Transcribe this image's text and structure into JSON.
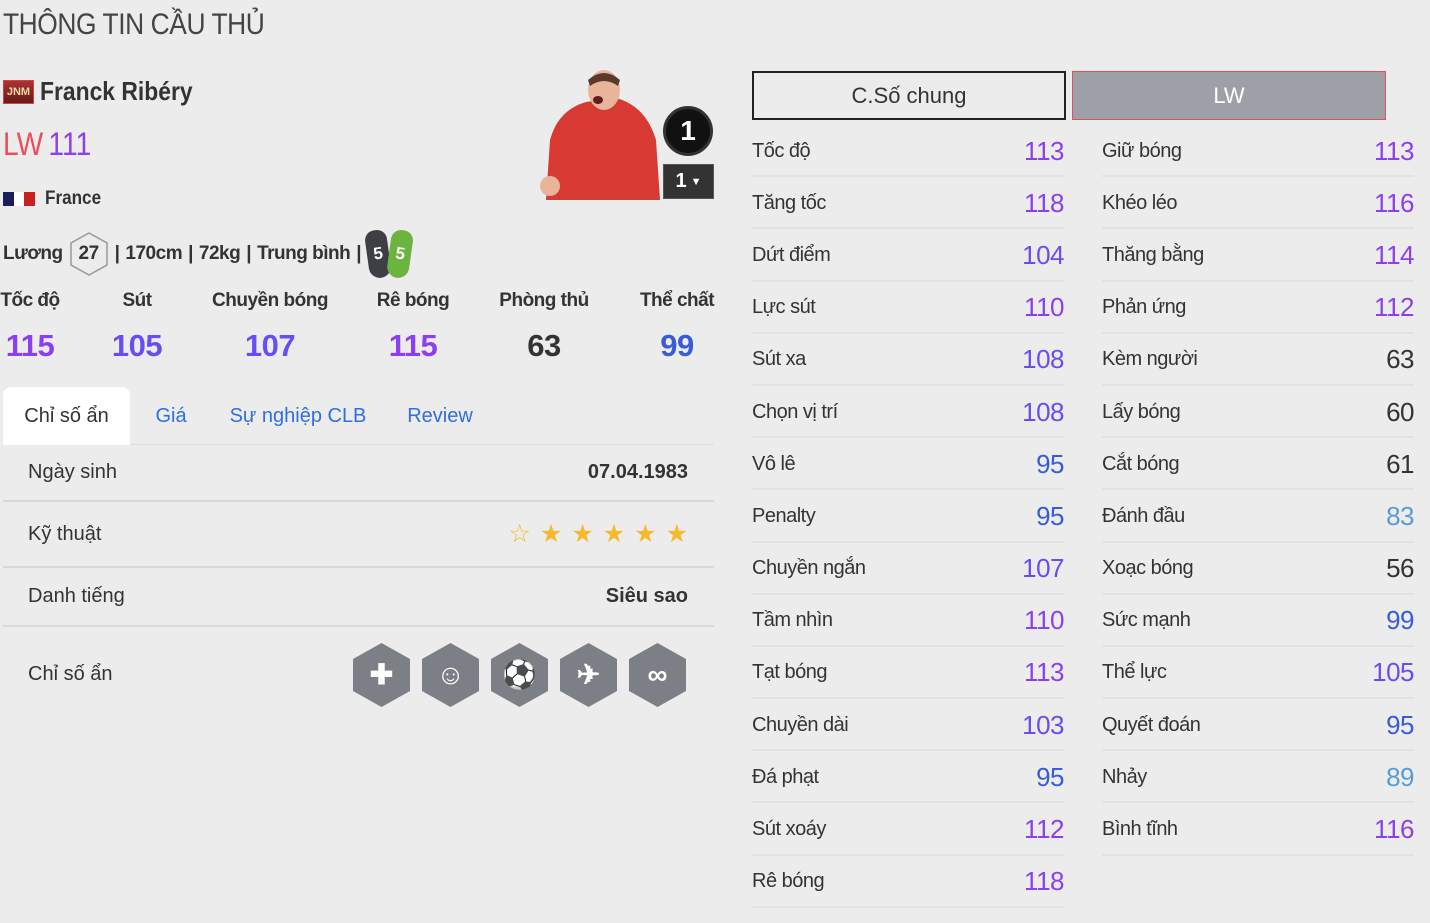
{
  "page_title": "THÔNG TIN CẦU THỦ",
  "player": {
    "season_badge": "JNM",
    "name": "Franck Ribéry",
    "position": "LW",
    "overall": "111",
    "nation": "France",
    "flag_colors": [
      "#1a1f5c",
      "#ffffff",
      "#c8201e"
    ],
    "wage_label": "Lương",
    "wage": "27",
    "height": "170cm",
    "weight": "72kg",
    "body_type": "Trung bình",
    "weak_foot": "5",
    "strong_foot": "5",
    "chemistry": "1",
    "level": "1"
  },
  "summary": [
    {
      "label": "Tốc độ",
      "value": "115"
    },
    {
      "label": "Sút",
      "value": "105"
    },
    {
      "label": "Chuyền bóng",
      "value": "107"
    },
    {
      "label": "Rê bóng",
      "value": "115"
    },
    {
      "label": "Phòng thủ",
      "value": "63"
    },
    {
      "label": "Thể chất",
      "value": "99"
    }
  ],
  "tabs": [
    {
      "label": "Chỉ số ẩn",
      "active": true
    },
    {
      "label": "Giá"
    },
    {
      "label": "Sự nghiệp CLB"
    },
    {
      "label": "Review"
    }
  ],
  "info": {
    "birth_label": "Ngày sinh",
    "birth": "07.04.1983",
    "skill_label": "Kỹ thuật",
    "skill_stars": 5,
    "skill_max": 6,
    "fame_label": "Danh tiếng",
    "fame": "Siêu sao",
    "traits_label": "Chỉ số ẩn",
    "traits": [
      "injury-prone-icon",
      "flair-icon",
      "speed-dribbler-icon",
      "power-header-icon",
      "playmaker-icon"
    ]
  },
  "segment": {
    "general": "C.Số chung",
    "position": "LW"
  },
  "colors": {
    "purple": "#8b3ff0",
    "indigo": "#6a4cf5",
    "blue": "#3a5bd9",
    "lightblue": "#5a9bd5",
    "gray": "#333333"
  },
  "stats_left": [
    {
      "label": "Tốc độ",
      "value": "113"
    },
    {
      "label": "Tăng tốc",
      "value": "118"
    },
    {
      "label": "Dứt điểm",
      "value": "104"
    },
    {
      "label": "Lực sút",
      "value": "110"
    },
    {
      "label": "Sút xa",
      "value": "108"
    },
    {
      "label": "Chọn vị trí",
      "value": "108"
    },
    {
      "label": "Vô lê",
      "value": "95"
    },
    {
      "label": "Penalty",
      "value": "95"
    },
    {
      "label": "Chuyền ngắn",
      "value": "107"
    },
    {
      "label": "Tầm nhìn",
      "value": "110"
    },
    {
      "label": "Tạt bóng",
      "value": "113"
    },
    {
      "label": "Chuyền dài",
      "value": "103"
    },
    {
      "label": "Đá phạt",
      "value": "95"
    },
    {
      "label": "Sút xoáy",
      "value": "112"
    },
    {
      "label": "Rê bóng",
      "value": "118"
    }
  ],
  "stats_right": [
    {
      "label": "Giữ bóng",
      "value": "113"
    },
    {
      "label": "Khéo léo",
      "value": "116"
    },
    {
      "label": "Thăng bằng",
      "value": "114"
    },
    {
      "label": "Phản ứng",
      "value": "112"
    },
    {
      "label": "Kèm người",
      "value": "63"
    },
    {
      "label": "Lấy bóng",
      "value": "60"
    },
    {
      "label": "Cắt bóng",
      "value": "61"
    },
    {
      "label": "Đánh đầu",
      "value": "83"
    },
    {
      "label": "Xoạc bóng",
      "value": "56"
    },
    {
      "label": "Sức mạnh",
      "value": "99"
    },
    {
      "label": "Thể lực",
      "value": "105"
    },
    {
      "label": "Quyết đoán",
      "value": "95"
    },
    {
      "label": "Nhảy",
      "value": "89"
    },
    {
      "label": "Bình tĩnh",
      "value": "116"
    }
  ]
}
